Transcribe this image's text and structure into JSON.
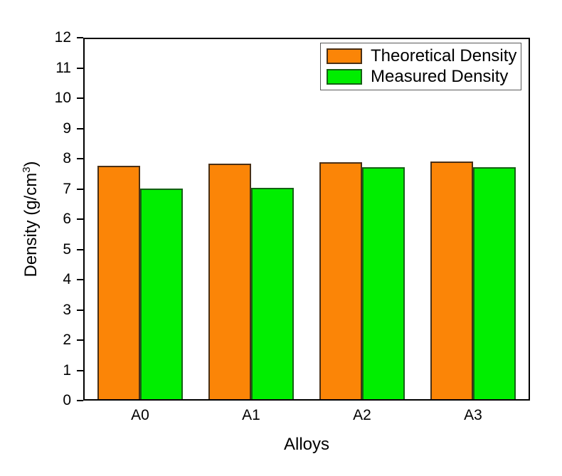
{
  "figure": {
    "background": "#FFFFFF",
    "axis_color": "#000000"
  },
  "chart_data": {
    "type": "bar",
    "title": "",
    "categories": [
      "A0",
      "A1",
      "A2",
      "A3"
    ],
    "series": [
      {
        "name": "Theoretical Density",
        "values": [
          7.77,
          7.86,
          7.9,
          7.93
        ],
        "color": "#FB8507",
        "border_color": "#4A3016"
      },
      {
        "name": "Measured Density",
        "values": [
          7.03,
          7.05,
          7.73,
          7.72
        ],
        "color": "#00EE00",
        "border_color": "#156015"
      }
    ],
    "xlabel": "Alloys",
    "ylabel": "Density (g/cm³)",
    "ylabel_parts": {
      "pre": "Density (g/cm",
      "sup": "3",
      "post": ")"
    },
    "ylim": [
      0,
      12
    ],
    "ytick_step": 1,
    "ytick_labels": [
      "0",
      "1",
      "2",
      "3",
      "4",
      "5",
      "6",
      "7",
      "8",
      "9",
      "10",
      "11",
      "12"
    ],
    "grid": false,
    "legend_position": "top-right",
    "frame": "full-box"
  }
}
